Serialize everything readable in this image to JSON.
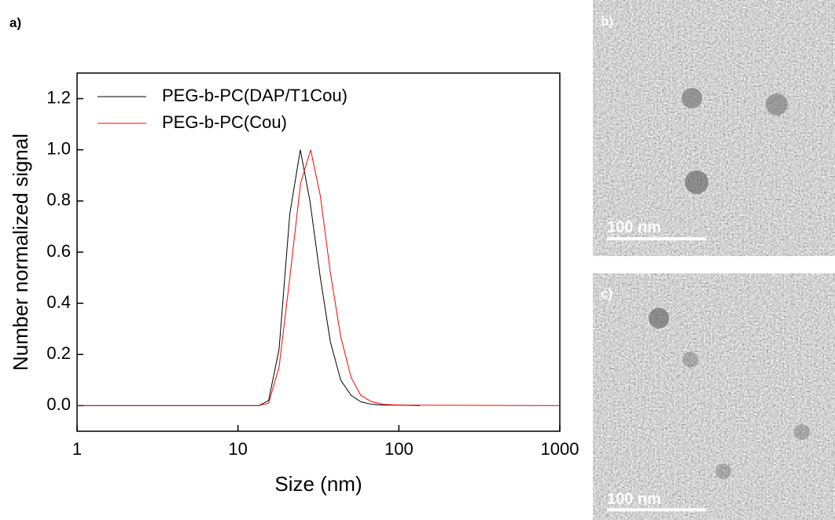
{
  "chart_data": {
    "type": "line",
    "xlabel": "Size (nm)",
    "ylabel": "Number normalized signal",
    "xscale": "log",
    "xlim": [
      1,
      1000
    ],
    "xticks": [
      1,
      10,
      100,
      1000
    ],
    "ylim": [
      -0.1,
      1.3
    ],
    "yticks": [
      {
        "value": 0,
        "label": "0.0"
      },
      0.2,
      0.4,
      0.6,
      0.8,
      {
        "value": 1,
        "label": "1.0"
      },
      1.2
    ],
    "legend": "top-left",
    "series": [
      {
        "name": "PEG-b-PC(DAP/T1Cou)",
        "color": "#000000",
        "x": [
          1,
          13.5,
          15.5,
          18,
          21,
          24.4,
          28,
          32.5,
          37.5,
          43.5,
          50.5,
          58,
          68,
          80,
          100,
          135
        ],
        "values": [
          0,
          0,
          0.02,
          0.22,
          0.75,
          1.0,
          0.8,
          0.5,
          0.25,
          0.1,
          0.04,
          0.015,
          0.005,
          0.002,
          0.002,
          0
        ]
      },
      {
        "name": "PEG-b-PC(Cou)",
        "color": "#ff0000",
        "x": [
          1,
          13.5,
          15.5,
          18,
          21,
          24.5,
          28.3,
          32.5,
          37.5,
          43.5,
          50.5,
          58,
          68,
          80,
          100,
          1000
        ],
        "values": [
          0,
          0,
          0.01,
          0.15,
          0.5,
          0.87,
          1.0,
          0.82,
          0.52,
          0.27,
          0.11,
          0.04,
          0.015,
          0.005,
          0.002,
          0
        ]
      }
    ]
  },
  "panels": {
    "a": "a)",
    "b": "b)",
    "c": "c)",
    "scale_b": "100 nm",
    "scale_c": "100 nm"
  }
}
